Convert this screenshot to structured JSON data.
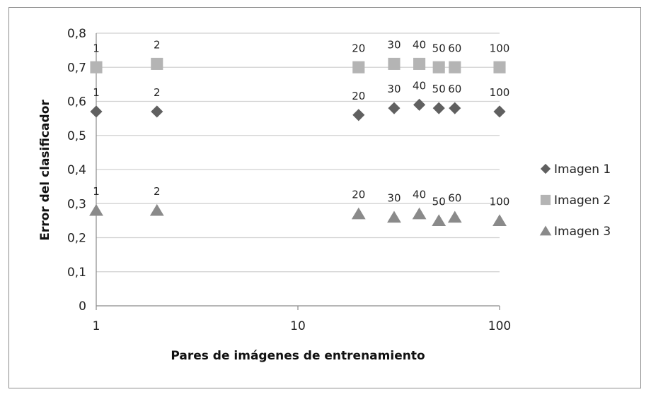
{
  "chart_data": {
    "type": "scatter",
    "title": "",
    "xlabel": "Pares de imágenes de entrenamiento",
    "ylabel": "Error del clasificador",
    "xscale": "log",
    "xlim": [
      1,
      100
    ],
    "ylim": [
      0,
      0.8
    ],
    "x_ticks": [
      {
        "value": 1,
        "label": "1"
      },
      {
        "value": 10,
        "label": "10"
      },
      {
        "value": 100,
        "label": "100"
      }
    ],
    "y_ticks": [
      {
        "value": 0,
        "label": "0"
      },
      {
        "value": 0.1,
        "label": "0,1"
      },
      {
        "value": 0.2,
        "label": "0,2"
      },
      {
        "value": 0.3,
        "label": "0,3"
      },
      {
        "value": 0.4,
        "label": "0,4"
      },
      {
        "value": 0.5,
        "label": "0,5"
      },
      {
        "value": 0.6,
        "label": "0,6"
      },
      {
        "value": 0.7,
        "label": "0,7"
      },
      {
        "value": 0.8,
        "label": "0,8"
      }
    ],
    "grid": "horizontal",
    "legend_position": "right",
    "x": [
      1,
      2,
      20,
      30,
      40,
      50,
      60,
      100
    ],
    "point_labels": [
      "1",
      "2",
      "20",
      "30",
      "40",
      "50",
      "60",
      "100"
    ],
    "series": [
      {
        "name": "Imagen 1",
        "marker": "diamond",
        "color": "#606060",
        "values": [
          0.57,
          0.57,
          0.56,
          0.58,
          0.59,
          0.58,
          0.58,
          0.57
        ]
      },
      {
        "name": "Imagen 2",
        "marker": "square",
        "color": "#b4b4b4",
        "values": [
          0.7,
          0.71,
          0.7,
          0.71,
          0.71,
          0.7,
          0.7,
          0.7
        ]
      },
      {
        "name": "Imagen 3",
        "marker": "triangle",
        "color": "#8a8a8a",
        "values": [
          0.28,
          0.28,
          0.27,
          0.26,
          0.27,
          0.25,
          0.26,
          0.25
        ]
      }
    ]
  }
}
